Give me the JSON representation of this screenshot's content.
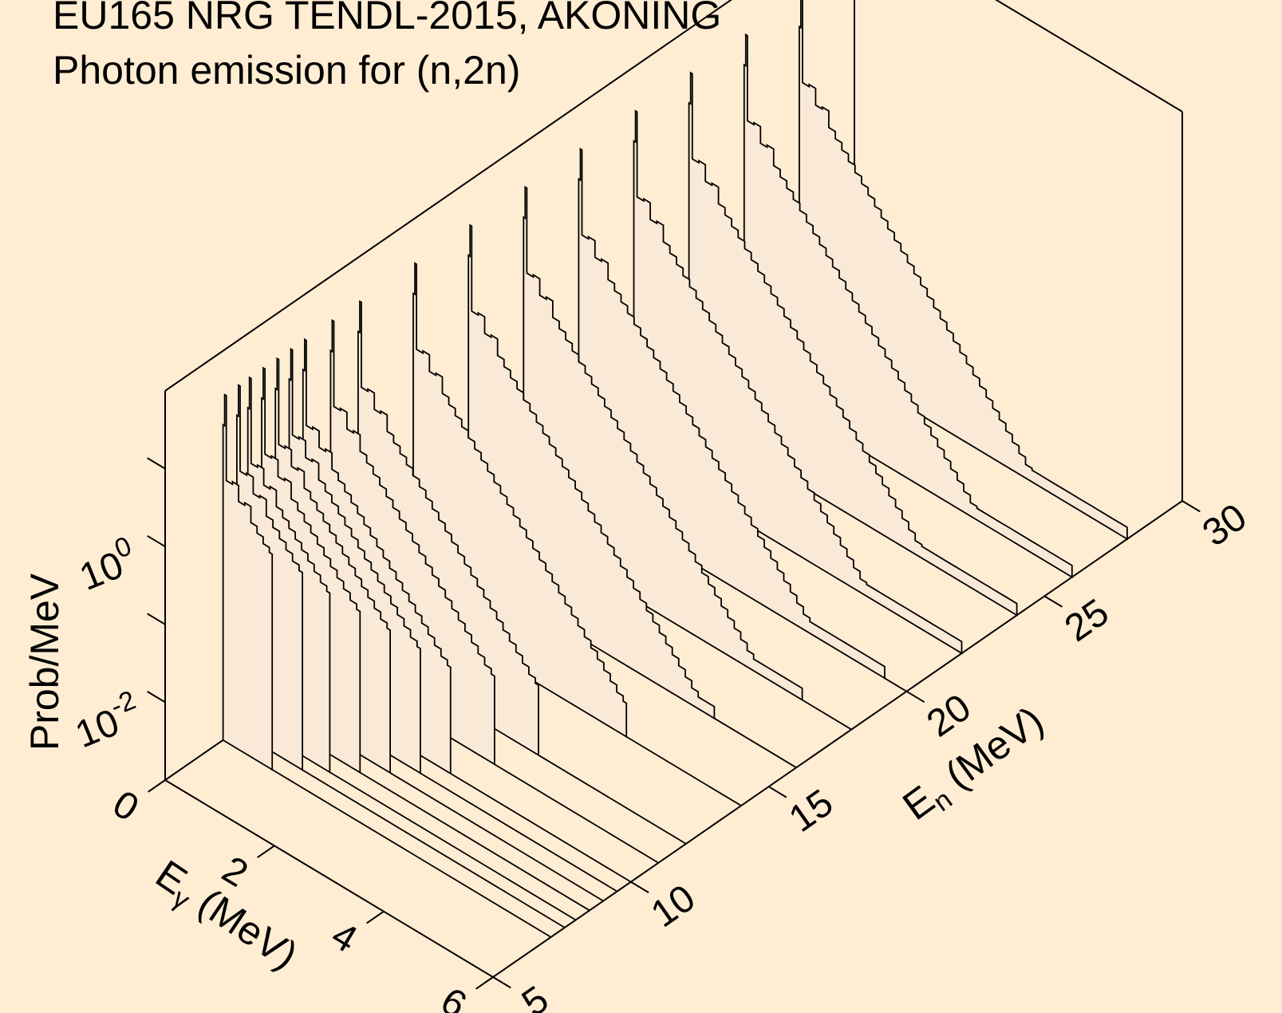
{
  "chart_data": {
    "type": "waterfall-3d",
    "title_lines": [
      "EU165 NRG TENDL-2015, AKONING",
      "Photon emission for (n,2n)"
    ],
    "axes": {
      "x": {
        "label": "E",
        "label_sub": "γ",
        "label_unit": " (MeV)",
        "range": [
          0,
          6
        ],
        "ticks": [
          0,
          2,
          4,
          6
        ],
        "tick_labels": [
          "0",
          "2",
          "4",
          "6"
        ]
      },
      "y": {
        "label": "E",
        "label_sub": "n",
        "label_unit": " (MeV)",
        "range": [
          5,
          30
        ],
        "ticks": [
          5,
          10,
          15,
          20,
          25,
          30
        ],
        "tick_labels": [
          "5",
          "10",
          "15",
          "20",
          "25",
          "30"
        ]
      },
      "z": {
        "label": "Prob/MeV",
        "scale": "log",
        "range_log10": [
          -3,
          2
        ],
        "labeled_ticks": [
          {
            "base": "10",
            "exp": "-2",
            "log10": -2
          },
          {
            "base": "10",
            "exp": "0",
            "log10": 0
          }
        ]
      }
    },
    "spectra": {
      "incident_energies_MeV": [
        7.1,
        7.6,
        8.0,
        8.5,
        9.0,
        9.5,
        10,
        11,
        12,
        14,
        16,
        18,
        20,
        22,
        24,
        26,
        28
      ],
      "gamma_energy_max_MeV": [
        0.9,
        1.2,
        1.5,
        1.8,
        2.1,
        2.4,
        2.7,
        3.0,
        3.3,
        3.9,
        4.5,
        5.1,
        5.6,
        6.0,
        6.0,
        6.0,
        6.0
      ],
      "peak_log10": 1.45,
      "slope_log10_per_MeV": -0.78
    }
  }
}
